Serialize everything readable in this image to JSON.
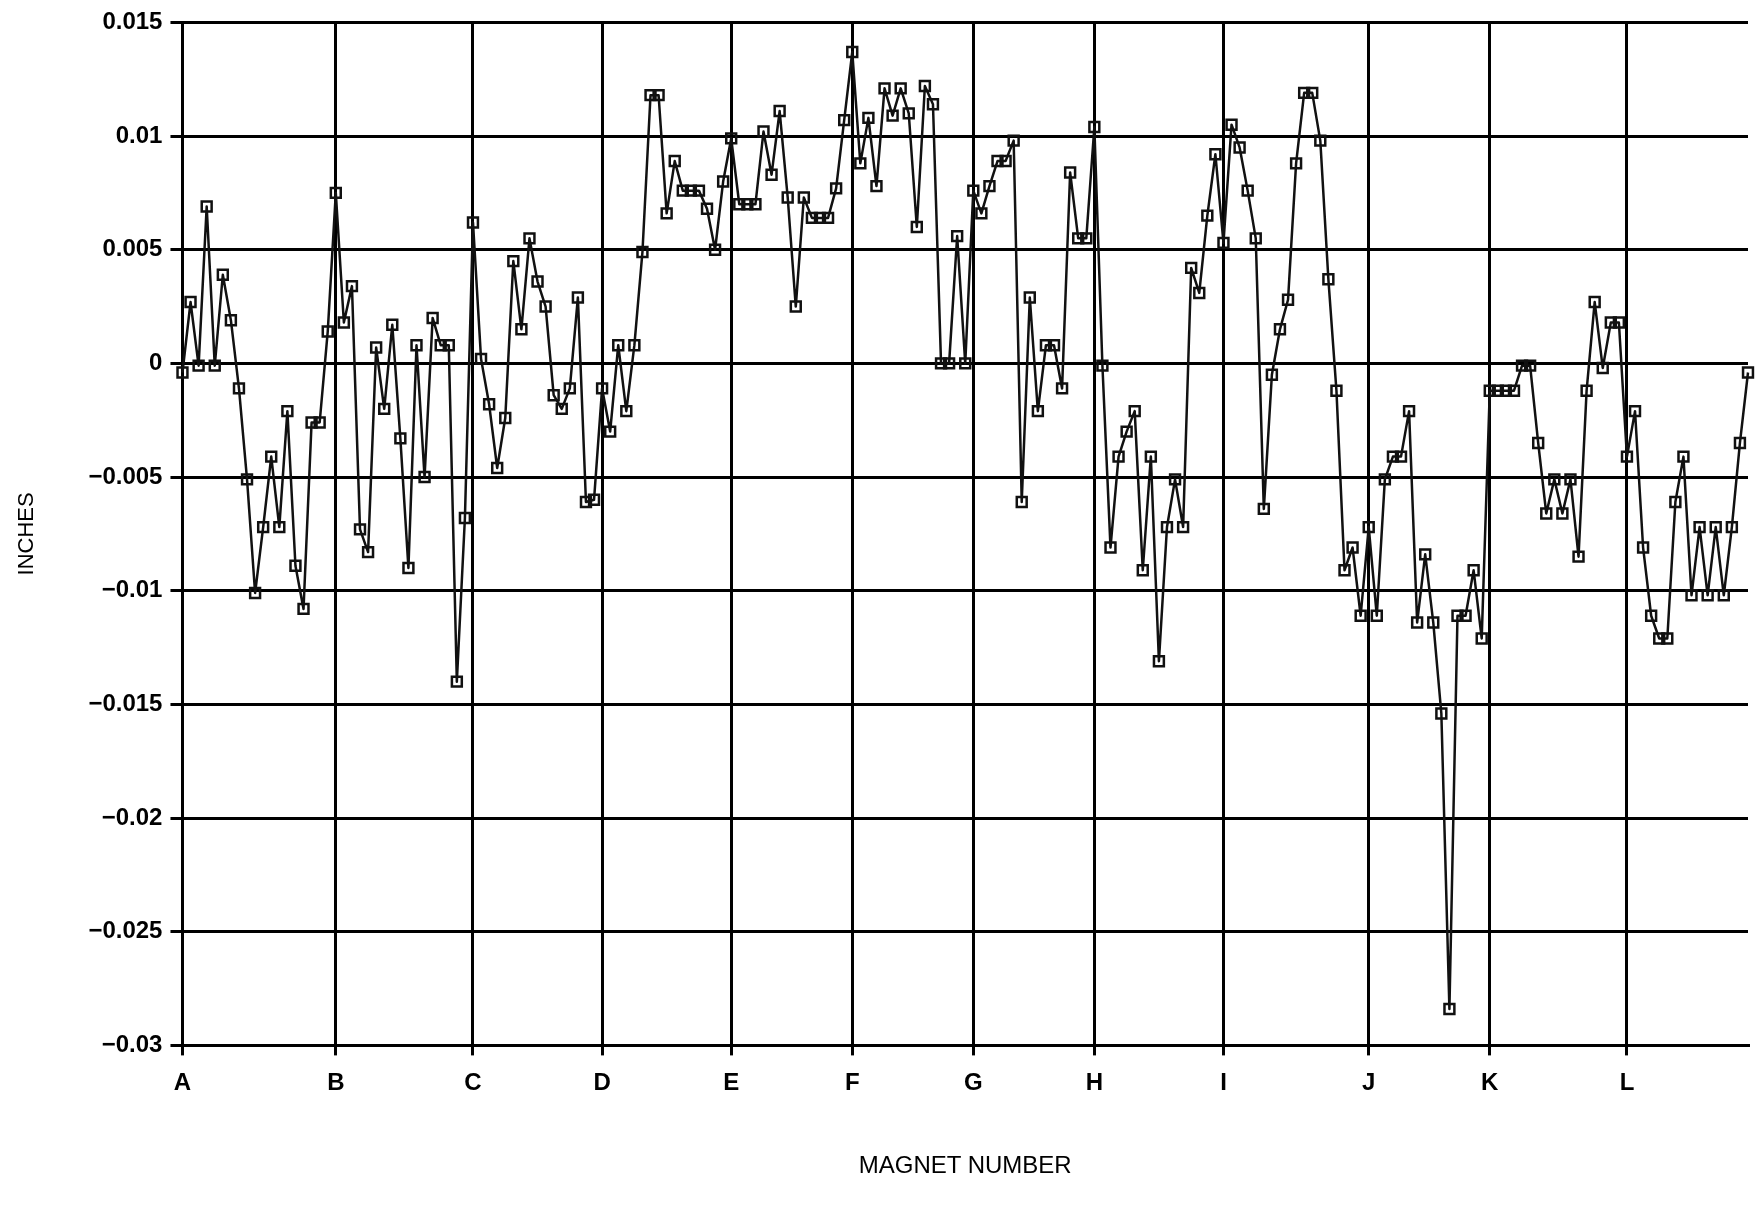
{
  "chart_data": {
    "type": "line",
    "xlabel": "MAGNET NUMBER",
    "ylabel": "INCHES",
    "values": [
      -0.0004,
      0.0027,
      -0.0001,
      0.0069,
      -0.0001,
      0.0039,
      0.0019,
      -0.0011,
      -0.0051,
      -0.0101,
      -0.0072,
      -0.0041,
      -0.0072,
      -0.0021,
      -0.0089,
      -0.0108,
      -0.0026,
      -0.0026,
      0.0014,
      0.0075,
      0.0018,
      0.0034,
      -0.0073,
      -0.0083,
      0.0007,
      -0.002,
      0.0017,
      -0.0033,
      -0.009,
      0.0008,
      -0.005,
      0.002,
      0.0008,
      0.0008,
      -0.014,
      -0.0068,
      0.0062,
      0.0002,
      -0.0018,
      -0.0046,
      -0.0024,
      0.0045,
      0.0015,
      0.0055,
      0.0036,
      0.0025,
      -0.0014,
      -0.002,
      -0.0011,
      0.0029,
      -0.0061,
      -0.006,
      -0.0011,
      -0.003,
      0.0008,
      -0.0021,
      0.0008,
      0.0049,
      0.0118,
      0.0118,
      0.0066,
      0.0089,
      0.0076,
      0.0076,
      0.0076,
      0.0068,
      0.005,
      0.008,
      0.0099,
      0.007,
      0.007,
      0.007,
      0.0102,
      0.0083,
      0.0111,
      0.0073,
      0.0025,
      0.0073,
      0.0064,
      0.0064,
      0.0064,
      0.0077,
      0.0107,
      0.0137,
      0.0088,
      0.0108,
      0.0078,
      0.0121,
      0.0109,
      0.0121,
      0.011,
      0.006,
      0.0122,
      0.0114,
      0,
      0,
      0.0056,
      0,
      0.0076,
      0.0066,
      0.0078,
      0.0089,
      0.0089,
      0.0098,
      -0.0061,
      0.0029,
      -0.0021,
      0.0008,
      0.0008,
      -0.0011,
      0.0084,
      0.0055,
      0.0055,
      0.0104,
      -0.0001,
      -0.0081,
      -0.0041,
      -0.003,
      -0.0021,
      -0.0091,
      -0.0041,
      -0.0131,
      -0.0072,
      -0.0051,
      -0.0072,
      0.0042,
      0.0031,
      0.0065,
      0.0092,
      0.0053,
      0.0105,
      0.0095,
      0.0076,
      0.0055,
      -0.0064,
      -0.0005,
      0.0015,
      0.0028,
      0.0088,
      0.0119,
      0.0119,
      0.0098,
      0.0037,
      -0.0012,
      -0.0091,
      -0.0081,
      -0.0111,
      -0.0072,
      -0.0111,
      -0.0051,
      -0.0041,
      -0.0041,
      -0.0021,
      -0.0114,
      -0.0084,
      -0.0114,
      -0.0154,
      -0.0284,
      -0.0111,
      -0.0111,
      -0.0091,
      -0.0121,
      -0.0012,
      -0.0012,
      -0.0012,
      -0.0012,
      -0.0001,
      -0.0001,
      -0.0035,
      -0.0066,
      -0.0051,
      -0.0066,
      -0.0051,
      -0.0085,
      -0.0012,
      0.0027,
      -0.0002,
      0.0018,
      0.0018,
      -0.0041,
      -0.0021,
      -0.0081,
      -0.0111,
      -0.0121,
      -0.0121,
      -0.0061,
      -0.0041,
      -0.0102,
      -0.0072,
      -0.0102,
      -0.0072,
      -0.0102,
      -0.0072,
      -0.0035,
      -0.0004
    ],
    "color": "#111111",
    "marker": "square",
    "grid": true,
    "legend": false,
    "categories": [
      "A",
      null,
      null,
      null,
      null,
      null,
      null,
      null,
      null,
      null,
      null,
      null,
      null,
      null,
      null,
      null,
      null,
      null,
      null,
      "B",
      null,
      null,
      null,
      null,
      null,
      null,
      null,
      null,
      null,
      null,
      null,
      null,
      null,
      null,
      null,
      null,
      "C",
      null,
      null,
      null,
      null,
      null,
      null,
      null,
      null,
      null,
      null,
      null,
      null,
      null,
      null,
      null,
      "D",
      null,
      null,
      null,
      null,
      null,
      null,
      null,
      null,
      null,
      null,
      null,
      null,
      null,
      null,
      null,
      "E",
      null,
      null,
      null,
      null,
      null,
      null,
      null,
      null,
      null,
      null,
      null,
      null,
      null,
      null,
      "F",
      null,
      null,
      null,
      null,
      null,
      null,
      null,
      null,
      null,
      null,
      null,
      null,
      null,
      null,
      "G",
      null,
      null,
      null,
      null,
      null,
      null,
      null,
      null,
      null,
      null,
      null,
      null,
      null,
      null,
      "H",
      null,
      null,
      null,
      null,
      null,
      null,
      null,
      null,
      null,
      null,
      null,
      null,
      null,
      null,
      null,
      "I",
      null,
      null,
      null,
      null,
      null,
      null,
      null,
      null,
      null,
      null,
      null,
      null,
      null,
      null,
      null,
      null,
      null,
      "J",
      null,
      null,
      null,
      null,
      null,
      null,
      null,
      null,
      null,
      null,
      null,
      null,
      null,
      null,
      "K",
      null,
      null,
      null,
      null,
      null,
      null,
      null,
      null,
      null,
      null,
      null,
      null,
      null,
      null,
      null,
      null,
      "L",
      null,
      null,
      null,
      null,
      null,
      null,
      null,
      null,
      null,
      null,
      null,
      null,
      null,
      null,
      null
    ],
    "ylim": [
      -0.03,
      0.015
    ],
    "yticks": [
      {
        "value": -0.03,
        "label": "−0.03"
      },
      {
        "value": -0.025,
        "label": "−0.025"
      },
      {
        "value": -0.02,
        "label": "−0.02"
      },
      {
        "value": -0.015,
        "label": "−0.015"
      },
      {
        "value": -0.01,
        "label": "−0.01"
      },
      {
        "value": -0.005,
        "label": "−0.005"
      },
      0,
      0.005,
      0.01,
      0.015
    ]
  }
}
